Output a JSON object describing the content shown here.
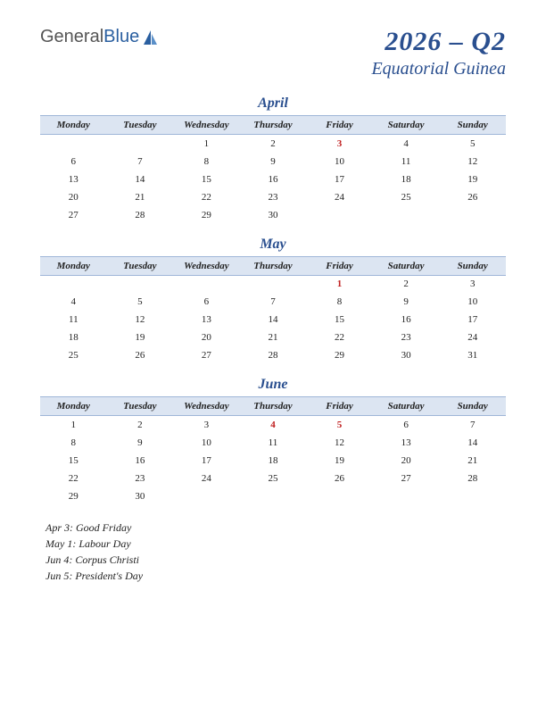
{
  "logo": {
    "part1": "General",
    "part2": "Blue"
  },
  "title": {
    "quarter": "2026 – Q2",
    "country": "Equatorial Guinea"
  },
  "weekdays": [
    "Monday",
    "Tuesday",
    "Wednesday",
    "Thursday",
    "Friday",
    "Saturday",
    "Sunday"
  ],
  "colors": {
    "heading": "#2a4f8f",
    "header_bg": "#dce5f2",
    "header_border": "#9fb6d8",
    "holiday_text": "#c02020",
    "body_text": "#222222",
    "background": "#ffffff"
  },
  "months": [
    {
      "name": "April",
      "weeks": [
        [
          "",
          "",
          "1",
          "2",
          "3",
          "4",
          "5"
        ],
        [
          "6",
          "7",
          "8",
          "9",
          "10",
          "11",
          "12"
        ],
        [
          "13",
          "14",
          "15",
          "16",
          "17",
          "18",
          "19"
        ],
        [
          "20",
          "21",
          "22",
          "23",
          "24",
          "25",
          "26"
        ],
        [
          "27",
          "28",
          "29",
          "30",
          "",
          "",
          ""
        ]
      ],
      "holidays": [
        "3"
      ]
    },
    {
      "name": "May",
      "weeks": [
        [
          "",
          "",
          "",
          "",
          "1",
          "2",
          "3"
        ],
        [
          "4",
          "5",
          "6",
          "7",
          "8",
          "9",
          "10"
        ],
        [
          "11",
          "12",
          "13",
          "14",
          "15",
          "16",
          "17"
        ],
        [
          "18",
          "19",
          "20",
          "21",
          "22",
          "23",
          "24"
        ],
        [
          "25",
          "26",
          "27",
          "28",
          "29",
          "30",
          "31"
        ]
      ],
      "holidays": [
        "1"
      ]
    },
    {
      "name": "June",
      "weeks": [
        [
          "1",
          "2",
          "3",
          "4",
          "5",
          "6",
          "7"
        ],
        [
          "8",
          "9",
          "10",
          "11",
          "12",
          "13",
          "14"
        ],
        [
          "15",
          "16",
          "17",
          "18",
          "19",
          "20",
          "21"
        ],
        [
          "22",
          "23",
          "24",
          "25",
          "26",
          "27",
          "28"
        ],
        [
          "29",
          "30",
          "",
          "",
          "",
          "",
          ""
        ]
      ],
      "holidays": [
        "4",
        "5"
      ]
    }
  ],
  "holiday_list": [
    "Apr 3: Good Friday",
    "May 1: Labour Day",
    "Jun 4: Corpus Christi",
    "Jun 5: President's Day"
  ]
}
